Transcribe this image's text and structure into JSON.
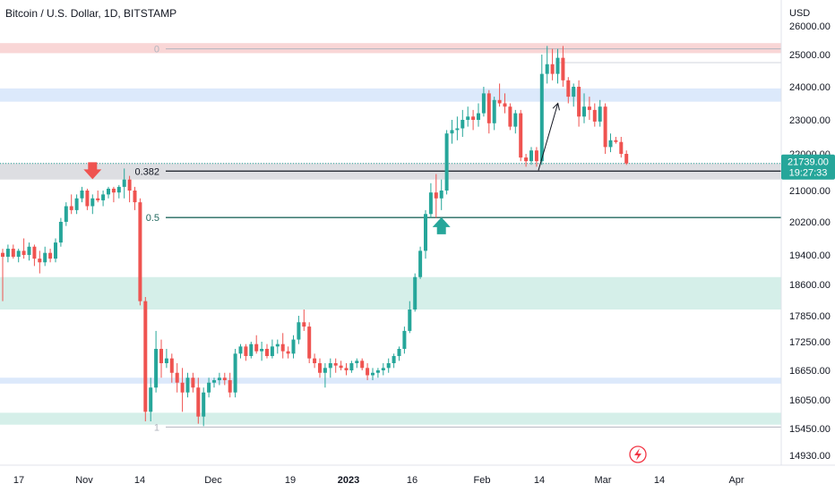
{
  "header": {
    "title": "Bitcoin / U.S. Dollar, 1D, BITSTAMP",
    "currency": "USD"
  },
  "colors": {
    "up": "#26a69a",
    "down": "#ef5350",
    "fib_line": "#22695f",
    "zone_green": "#d5efe9",
    "zone_blue": "#dce9fb",
    "zone_red": "#f9d6d6",
    "zone_gray": "#dddee2",
    "price_badge": "#26a69a"
  },
  "price_badge": {
    "price": "21739.00",
    "countdown": "19:27:33"
  },
  "event_icon": "lightning-icon",
  "chart_data": {
    "type": "candlestick",
    "title": "Bitcoin / U.S. Dollar, 1D, BITSTAMP",
    "ylabel": "USD",
    "y_ticks": [
      "26000.00",
      "25000.00",
      "24000.00",
      "23000.00",
      "22000.00",
      "21000.00",
      "20200.00",
      "19400.00",
      "18600.00",
      "17850.00",
      "17250.00",
      "16650.00",
      "16050.00",
      "15450.00",
      "14930.00"
    ],
    "x_ticks": [
      "17",
      "Nov",
      "14",
      "Dec",
      "19",
      "2023",
      "16",
      "Feb",
      "14",
      "Mar",
      "14",
      "Apr"
    ],
    "fib_levels": [
      {
        "label": "0",
        "price": 25200
      },
      {
        "label": "0.382",
        "price": 21530
      },
      {
        "label": "0.5",
        "price": 20310
      },
      {
        "label": "1",
        "price": 15480
      }
    ],
    "zones": [
      {
        "color": "zone_red",
        "from": 25050,
        "to": 25400
      },
      {
        "color": "zone_blue",
        "from": 23550,
        "to": 23950
      },
      {
        "color": "zone_gray",
        "from": 21300,
        "to": 21750
      },
      {
        "color": "zone_green",
        "from": 18000,
        "to": 18800
      },
      {
        "color": "zone_blue",
        "from": 16380,
        "to": 16500
      },
      {
        "color": "zone_green",
        "from": 15530,
        "to": 15780
      }
    ],
    "annotations": [
      {
        "type": "arrow-down",
        "color": "down",
        "date_index": 17
      },
      {
        "type": "arrow-up",
        "color": "up",
        "date_index": 83
      },
      {
        "type": "trend-arrow",
        "from_index": 100,
        "from_price": 21550,
        "to_index": 103,
        "to_price": 23500
      }
    ],
    "candles": [
      [
        19450,
        19550,
        18200,
        19350
      ],
      [
        19350,
        19650,
        19200,
        19550
      ],
      [
        19550,
        19650,
        19300,
        19350
      ],
      [
        19350,
        19550,
        19200,
        19500
      ],
      [
        19500,
        19800,
        19300,
        19400
      ],
      [
        19400,
        19700,
        19250,
        19600
      ],
      [
        19600,
        19650,
        19100,
        19300
      ],
      [
        19300,
        19500,
        18900,
        19200
      ],
      [
        19200,
        19600,
        19100,
        19450
      ],
      [
        19450,
        19550,
        19200,
        19300
      ],
      [
        19300,
        19800,
        19200,
        19700
      ],
      [
        19700,
        20300,
        19600,
        20200
      ],
      [
        20200,
        20700,
        20100,
        20600
      ],
      [
        20600,
        20900,
        20400,
        20500
      ],
      [
        20500,
        20900,
        20400,
        20800
      ],
      [
        20800,
        21100,
        20700,
        21000
      ],
      [
        21000,
        21050,
        20500,
        20600
      ],
      [
        20600,
        20900,
        20400,
        20800
      ],
      [
        20800,
        21000,
        20700,
        20750
      ],
      [
        20750,
        21000,
        20600,
        20900
      ],
      [
        20900,
        21100,
        20800,
        21050
      ],
      [
        21050,
        21100,
        20700,
        20950
      ],
      [
        20950,
        21150,
        20800,
        21100
      ],
      [
        21100,
        21600,
        20800,
        21300
      ],
      [
        21300,
        21400,
        20700,
        21000
      ],
      [
        21000,
        21100,
        20500,
        20700
      ],
      [
        20700,
        20800,
        18100,
        18200
      ],
      [
        18200,
        18300,
        15600,
        15800
      ],
      [
        15800,
        16500,
        15600,
        16300
      ],
      [
        16300,
        17500,
        16200,
        17100
      ],
      [
        17100,
        17300,
        16500,
        16800
      ],
      [
        16800,
        17100,
        16700,
        16900
      ],
      [
        16900,
        17000,
        16400,
        16600
      ],
      [
        16600,
        16800,
        16200,
        16400
      ],
      [
        16400,
        16700,
        15800,
        16200
      ],
      [
        16200,
        16600,
        16100,
        16500
      ],
      [
        16500,
        16600,
        16200,
        16300
      ],
      [
        16300,
        16500,
        15550,
        15700
      ],
      [
        15700,
        16300,
        15500,
        16200
      ],
      [
        16200,
        16500,
        16100,
        16400
      ],
      [
        16400,
        16500,
        16300,
        16450
      ],
      [
        16450,
        16600,
        16350,
        16500
      ],
      [
        16500,
        16600,
        16350,
        16450
      ],
      [
        16450,
        16600,
        16100,
        16200
      ],
      [
        16200,
        17100,
        16100,
        17000
      ],
      [
        17000,
        17200,
        16900,
        17150
      ],
      [
        17150,
        17200,
        16850,
        16950
      ],
      [
        16950,
        17250,
        16900,
        17200
      ],
      [
        17200,
        17400,
        17000,
        17050
      ],
      [
        17050,
        17250,
        16850,
        17100
      ],
      [
        17100,
        17200,
        16900,
        16950
      ],
      [
        16950,
        17300,
        16900,
        17150
      ],
      [
        17150,
        17300,
        17000,
        17200
      ],
      [
        17200,
        17450,
        16900,
        17050
      ],
      [
        17050,
        17150,
        16900,
        17000
      ],
      [
        17000,
        17400,
        16900,
        17300
      ],
      [
        17300,
        17850,
        17200,
        17700
      ],
      [
        17700,
        18000,
        17500,
        17600
      ],
      [
        17600,
        17700,
        16800,
        16900
      ],
      [
        16900,
        17000,
        16700,
        16800
      ],
      [
        16800,
        16900,
        16500,
        16600
      ],
      [
        16600,
        16800,
        16300,
        16700
      ],
      [
        16700,
        16900,
        16500,
        16800
      ],
      [
        16800,
        16900,
        16600,
        16750
      ],
      [
        16750,
        16850,
        16650,
        16700
      ],
      [
        16700,
        16800,
        16550,
        16650
      ],
      [
        16650,
        16850,
        16600,
        16800
      ],
      [
        16800,
        16900,
        16700,
        16850
      ],
      [
        16850,
        16900,
        16650,
        16700
      ],
      [
        16700,
        16800,
        16450,
        16550
      ],
      [
        16550,
        16700,
        16450,
        16600
      ],
      [
        16600,
        16700,
        16500,
        16650
      ],
      [
        16650,
        16800,
        16550,
        16700
      ],
      [
        16700,
        16900,
        16600,
        16800
      ],
      [
        16800,
        17000,
        16700,
        16950
      ],
      [
        16950,
        17150,
        16850,
        17100
      ],
      [
        17100,
        17600,
        17000,
        17500
      ],
      [
        17500,
        18200,
        17450,
        18000
      ],
      [
        18000,
        18900,
        17950,
        18800
      ],
      [
        18800,
        19600,
        18750,
        19500
      ],
      [
        19500,
        20500,
        19300,
        20400
      ],
      [
        20400,
        21200,
        20300,
        20950
      ],
      [
        20950,
        21450,
        20300,
        20800
      ],
      [
        20800,
        21300,
        20500,
        21000
      ],
      [
        21000,
        22700,
        20900,
        22600
      ],
      [
        22600,
        23000,
        22300,
        22700
      ],
      [
        22700,
        23100,
        22400,
        22750
      ],
      [
        22750,
        23300,
        22500,
        23000
      ],
      [
        23000,
        23400,
        22800,
        23100
      ],
      [
        23100,
        23300,
        22700,
        23000
      ],
      [
        23000,
        23500,
        22800,
        23200
      ],
      [
        23200,
        24000,
        23100,
        23800
      ],
      [
        23800,
        23900,
        22600,
        22900
      ],
      [
        22900,
        23700,
        22700,
        23600
      ],
      [
        23600,
        24100,
        23400,
        23500
      ],
      [
        23500,
        23800,
        23200,
        23400
      ],
      [
        23400,
        23500,
        22700,
        22800
      ],
      [
        22800,
        23300,
        22600,
        23200
      ],
      [
        23200,
        23300,
        21800,
        21900
      ],
      [
        21900,
        22000,
        21650,
        21800
      ],
      [
        21800,
        22200,
        21700,
        22100
      ],
      [
        22100,
        22200,
        21650,
        21800
      ],
      [
        21800,
        25000,
        21700,
        24400
      ],
      [
        24400,
        25300,
        24100,
        24700
      ],
      [
        24700,
        25200,
        24200,
        24400
      ],
      [
        24400,
        25200,
        24100,
        24900
      ],
      [
        24900,
        25300,
        24000,
        24200
      ],
      [
        24200,
        24300,
        23500,
        23700
      ],
      [
        23700,
        24100,
        23400,
        24000
      ],
      [
        24000,
        24200,
        22800,
        23100
      ],
      [
        23100,
        23800,
        22900,
        23400
      ],
      [
        23400,
        23700,
        23000,
        23300
      ],
      [
        23300,
        23500,
        22800,
        22950
      ],
      [
        22950,
        23600,
        22800,
        23400
      ],
      [
        23400,
        23500,
        22000,
        22200
      ],
      [
        22200,
        22600,
        22050,
        22400
      ],
      [
        22400,
        22500,
        22300,
        22350
      ],
      [
        22350,
        22500,
        21900,
        22000
      ],
      [
        22000,
        22100,
        21700,
        21739
      ]
    ]
  }
}
